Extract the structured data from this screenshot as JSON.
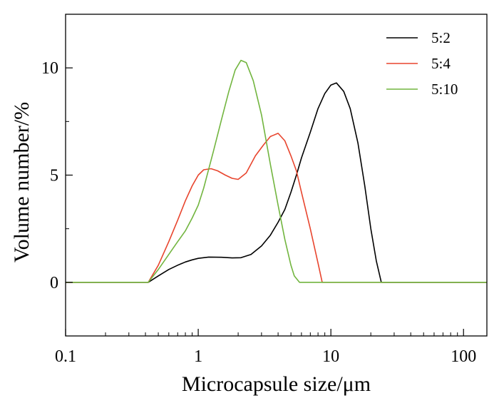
{
  "chart_data": {
    "type": "line",
    "title": "",
    "xlabel": "Microcapsule size/μm",
    "ylabel": "Volume number/%",
    "xscale": "log",
    "xlim": [
      0.1,
      150
    ],
    "ylim": [
      -2.5,
      12.5
    ],
    "xticks": [
      0.1,
      1,
      10,
      100
    ],
    "xtick_labels": [
      "0.1",
      "1",
      "10",
      "100"
    ],
    "yticks": [
      0,
      5,
      10
    ],
    "ytick_labels": [
      "0",
      "5",
      "10"
    ],
    "grid": false,
    "legend_position": "top-right",
    "series": [
      {
        "name": "5:2",
        "color": "#000000",
        "x": [
          0.1,
          0.42,
          0.5,
          0.6,
          0.7,
          0.8,
          0.9,
          1.0,
          1.2,
          1.5,
          1.8,
          2.1,
          2.5,
          3.0,
          3.5,
          4.0,
          4.5,
          5.0,
          5.5,
          6.0,
          7.0,
          8.0,
          9.0,
          10.0,
          11.0,
          12.5,
          14.0,
          16.0,
          18.0,
          20.0,
          22.0,
          24.0,
          150
        ],
        "y": [
          0,
          0,
          0.3,
          0.6,
          0.8,
          0.95,
          1.05,
          1.12,
          1.18,
          1.17,
          1.14,
          1.15,
          1.3,
          1.7,
          2.2,
          2.8,
          3.4,
          4.2,
          5.0,
          5.8,
          7.0,
          8.1,
          8.8,
          9.2,
          9.3,
          8.9,
          8.1,
          6.5,
          4.5,
          2.5,
          1.0,
          0,
          0
        ]
      },
      {
        "name": "5:4",
        "color": "#e8452e",
        "x": [
          0.1,
          0.42,
          0.5,
          0.6,
          0.7,
          0.8,
          0.9,
          1.0,
          1.1,
          1.25,
          1.4,
          1.6,
          1.8,
          2.0,
          2.3,
          2.7,
          3.1,
          3.5,
          4.0,
          4.5,
          5.0,
          5.5,
          6.0,
          7.0,
          8.0,
          8.6,
          150
        ],
        "y": [
          0,
          0,
          0.8,
          1.9,
          2.9,
          3.8,
          4.5,
          5.0,
          5.25,
          5.3,
          5.2,
          5.0,
          4.85,
          4.8,
          5.1,
          5.9,
          6.4,
          6.8,
          6.95,
          6.6,
          5.9,
          5.2,
          4.2,
          2.5,
          0.9,
          0,
          0
        ]
      },
      {
        "name": "5:10",
        "color": "#72b53f",
        "x": [
          0.1,
          0.42,
          0.5,
          0.6,
          0.7,
          0.8,
          0.9,
          1.0,
          1.1,
          1.3,
          1.5,
          1.7,
          1.9,
          2.1,
          2.3,
          2.6,
          3.0,
          3.5,
          4.0,
          4.5,
          5.0,
          5.3,
          5.8,
          150
        ],
        "y": [
          0,
          0,
          0.6,
          1.3,
          1.9,
          2.4,
          3.0,
          3.6,
          4.4,
          6.1,
          7.6,
          8.9,
          9.9,
          10.35,
          10.25,
          9.4,
          7.8,
          5.5,
          3.6,
          2.0,
          0.8,
          0.3,
          0,
          0
        ]
      }
    ]
  }
}
